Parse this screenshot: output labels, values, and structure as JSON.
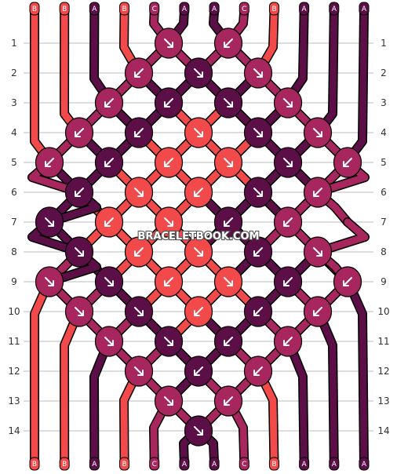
{
  "colors": {
    "A": "#5c0f47",
    "B": "#f24a4a",
    "C": "#a8265e",
    "line": "#000000",
    "grid": "#bbbbbb"
  },
  "strands_top": [
    "B",
    "B",
    "A",
    "B",
    "C",
    "A",
    "A",
    "C",
    "B",
    "A",
    "A",
    "A"
  ],
  "strands_bottom": [
    "B",
    "B",
    "A",
    "B",
    "C",
    "A",
    "A",
    "C",
    "B",
    "A",
    "A",
    "A"
  ],
  "rows": [
    "1",
    "2",
    "3",
    "4",
    "5",
    "6",
    "7",
    "8",
    "9",
    "10",
    "11",
    "12",
    "13",
    "14"
  ],
  "knots": [
    {
      "row": 1,
      "slot": 4,
      "color": "C",
      "dir": "se"
    },
    {
      "row": 1,
      "slot": 6,
      "color": "C",
      "dir": "sw"
    },
    {
      "row": 2,
      "slot": 3,
      "color": "C",
      "dir": "sw"
    },
    {
      "row": 2,
      "slot": 5,
      "color": "A",
      "dir": "se"
    },
    {
      "row": 2,
      "slot": 7,
      "color": "C",
      "dir": "se"
    },
    {
      "row": 3,
      "slot": 2,
      "color": "C",
      "dir": "sw"
    },
    {
      "row": 3,
      "slot": 4,
      "color": "A",
      "dir": "sw"
    },
    {
      "row": 3,
      "slot": 6,
      "color": "A",
      "dir": "se"
    },
    {
      "row": 3,
      "slot": 8,
      "color": "C",
      "dir": "se"
    },
    {
      "row": 4,
      "slot": 1,
      "color": "C",
      "dir": "sw"
    },
    {
      "row": 4,
      "slot": 3,
      "color": "A",
      "dir": "sw"
    },
    {
      "row": 4,
      "slot": 5,
      "color": "B",
      "dir": "se"
    },
    {
      "row": 4,
      "slot": 7,
      "color": "A",
      "dir": "se"
    },
    {
      "row": 4,
      "slot": 9,
      "color": "C",
      "dir": "se"
    },
    {
      "row": 5,
      "slot": 0,
      "color": "C",
      "dir": "sw"
    },
    {
      "row": 5,
      "slot": 2,
      "color": "A",
      "dir": "sw"
    },
    {
      "row": 5,
      "slot": 4,
      "color": "B",
      "dir": "sw"
    },
    {
      "row": 5,
      "slot": 6,
      "color": "B",
      "dir": "se"
    },
    {
      "row": 5,
      "slot": 8,
      "color": "A",
      "dir": "se"
    },
    {
      "row": 5,
      "slot": 10,
      "color": "C",
      "dir": "sw"
    },
    {
      "row": 6,
      "slot": 1,
      "color": "A",
      "dir": "sw"
    },
    {
      "row": 6,
      "slot": 3,
      "color": "B",
      "dir": "se"
    },
    {
      "row": 6,
      "slot": 5,
      "color": "B",
      "dir": "sw"
    },
    {
      "row": 6,
      "slot": 7,
      "color": "A",
      "dir": "se"
    },
    {
      "row": 6,
      "slot": 9,
      "color": "C",
      "dir": "sw"
    },
    {
      "row": 7,
      "slot": 0,
      "color": "A",
      "dir": "se"
    },
    {
      "row": 7,
      "slot": 2,
      "color": "B",
      "dir": "sw"
    },
    {
      "row": 7,
      "slot": 4,
      "color": "B",
      "dir": "se"
    },
    {
      "row": 7,
      "slot": 6,
      "color": "A",
      "dir": "sw"
    },
    {
      "row": 7,
      "slot": 8,
      "color": "C",
      "dir": "sw"
    },
    {
      "row": 8,
      "slot": 1,
      "color": "A",
      "dir": "se"
    },
    {
      "row": 8,
      "slot": 3,
      "color": "B",
      "dir": "sw"
    },
    {
      "row": 8,
      "slot": 5,
      "color": "B",
      "dir": "se"
    },
    {
      "row": 8,
      "slot": 7,
      "color": "A",
      "dir": "sw"
    },
    {
      "row": 8,
      "slot": 9,
      "color": "C",
      "dir": "se"
    },
    {
      "row": 9,
      "slot": 0,
      "color": "C",
      "dir": "se"
    },
    {
      "row": 9,
      "slot": 2,
      "color": "A",
      "dir": "se"
    },
    {
      "row": 9,
      "slot": 4,
      "color": "B",
      "dir": "sw"
    },
    {
      "row": 9,
      "slot": 6,
      "color": "B",
      "dir": "se"
    },
    {
      "row": 9,
      "slot": 8,
      "color": "A",
      "dir": "sw"
    },
    {
      "row": 9,
      "slot": 10,
      "color": "C",
      "dir": "sw"
    },
    {
      "row": 10,
      "slot": 1,
      "color": "C",
      "dir": "se"
    },
    {
      "row": 10,
      "slot": 3,
      "color": "A",
      "dir": "se"
    },
    {
      "row": 10,
      "slot": 5,
      "color": "B",
      "dir": "sw"
    },
    {
      "row": 10,
      "slot": 7,
      "color": "A",
      "dir": "sw"
    },
    {
      "row": 10,
      "slot": 9,
      "color": "C",
      "dir": "sw"
    },
    {
      "row": 11,
      "slot": 2,
      "color": "C",
      "dir": "se"
    },
    {
      "row": 11,
      "slot": 4,
      "color": "A",
      "dir": "se"
    },
    {
      "row": 11,
      "slot": 6,
      "color": "A",
      "dir": "sw"
    },
    {
      "row": 11,
      "slot": 8,
      "color": "C",
      "dir": "sw"
    },
    {
      "row": 12,
      "slot": 3,
      "color": "C",
      "dir": "se"
    },
    {
      "row": 12,
      "slot": 5,
      "color": "A",
      "dir": "sw"
    },
    {
      "row": 12,
      "slot": 7,
      "color": "C",
      "dir": "sw"
    },
    {
      "row": 13,
      "slot": 4,
      "color": "C",
      "dir": "se"
    },
    {
      "row": 13,
      "slot": 6,
      "color": "C",
      "dir": "sw"
    },
    {
      "row": 14,
      "slot": 5,
      "color": "A",
      "dir": "se"
    }
  ],
  "watermark": "BRACELETBOOK.COM"
}
